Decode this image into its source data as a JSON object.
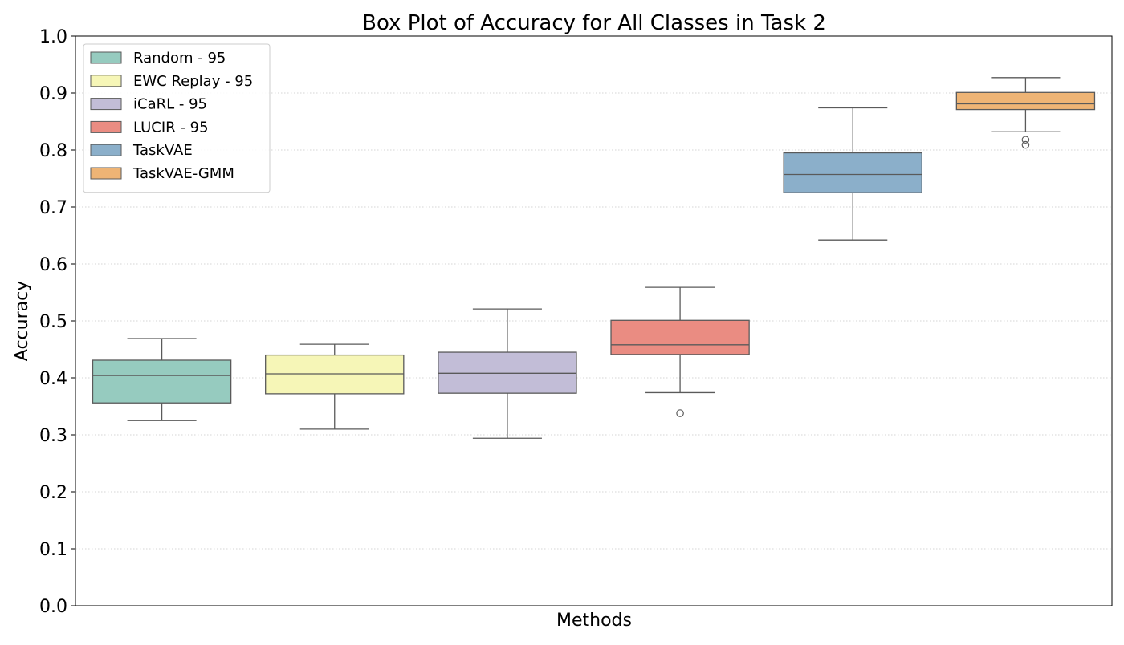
{
  "chart_data": {
    "type": "box",
    "title": "Box Plot of Accuracy for All Classes in Task 2",
    "xlabel": "Methods",
    "ylabel": "Accuracy",
    "ylim": [
      0.0,
      1.0
    ],
    "yticks": [
      0.0,
      0.1,
      0.2,
      0.3,
      0.4,
      0.5,
      0.6,
      0.7,
      0.8,
      0.9,
      1.0
    ],
    "ytick_labels": [
      "0.0",
      "0.1",
      "0.2",
      "0.3",
      "0.4",
      "0.5",
      "0.6",
      "0.7",
      "0.8",
      "0.9",
      "1.0"
    ],
    "grid": "horizontal dotted",
    "legend_position": "top-left",
    "series": [
      {
        "name": "Random - 95",
        "color": "#96cbbf",
        "whisker_low": 0.325,
        "q1": 0.356,
        "median": 0.404,
        "q3": 0.431,
        "whisker_high": 0.469,
        "outliers": []
      },
      {
        "name": "EWC Replay - 95",
        "color": "#f6f6b7",
        "whisker_low": 0.31,
        "q1": 0.372,
        "median": 0.407,
        "q3": 0.44,
        "whisker_high": 0.459,
        "outliers": []
      },
      {
        "name": "iCaRL - 95",
        "color": "#c2bdd7",
        "whisker_low": 0.294,
        "q1": 0.373,
        "median": 0.408,
        "q3": 0.445,
        "whisker_high": 0.521,
        "outliers": []
      },
      {
        "name": "LUCIR - 95",
        "color": "#ea8c82",
        "whisker_low": 0.374,
        "q1": 0.441,
        "median": 0.458,
        "q3": 0.501,
        "whisker_high": 0.559,
        "outliers": [
          0.338
        ]
      },
      {
        "name": "TaskVAE",
        "color": "#8bafca",
        "whisker_low": 0.642,
        "q1": 0.725,
        "median": 0.757,
        "q3": 0.795,
        "whisker_high": 0.874,
        "outliers": []
      },
      {
        "name": "TaskVAE-GMM",
        "color": "#eeb475",
        "whisker_low": 0.832,
        "q1": 0.871,
        "median": 0.881,
        "q3": 0.901,
        "whisker_high": 0.927,
        "outliers": [
          0.818,
          0.809
        ]
      }
    ]
  }
}
